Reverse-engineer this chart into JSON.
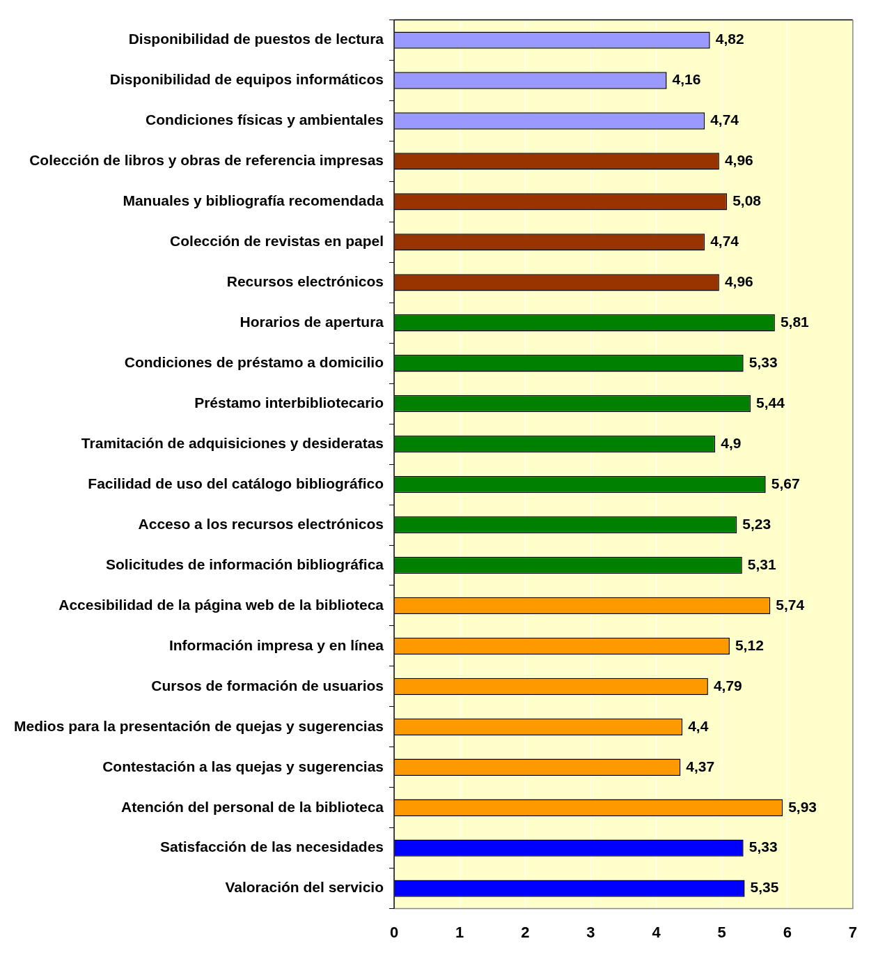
{
  "chart_data": {
    "type": "bar",
    "orientation": "horizontal",
    "categories": [
      "Disponibilidad de puestos de lectura",
      "Disponibilidad de equipos informáticos",
      "Condiciones físicas y ambientales",
      "Colección de libros y obras de referencia impresas",
      "Manuales y bibliografía recomendada",
      "Colección de revistas en papel",
      "Recursos electrónicos",
      "Horarios de apertura",
      "Condiciones de préstamo a domicilio",
      "Préstamo interbibliotecario",
      "Tramitación de adquisiciones y desideratas",
      "Facilidad de uso del catálogo bibliográfico",
      "Acceso a los recursos electrónicos",
      "Solicitudes de información bibliográfica",
      "Accesibilidad de la página web de la biblioteca",
      "Información impresa y en línea",
      "Cursos de formación de usuarios",
      "Medios para la presentación de quejas y sugerencias",
      "Contestación a las quejas y sugerencias",
      "Atención del personal de la biblioteca",
      "Satisfacción de las necesidades",
      "Valoración del servicio"
    ],
    "values": [
      4.82,
      4.16,
      4.74,
      4.96,
      5.08,
      4.74,
      4.96,
      5.81,
      5.33,
      5.44,
      4.9,
      5.67,
      5.23,
      5.31,
      5.74,
      5.12,
      4.79,
      4.4,
      4.37,
      5.93,
      5.33,
      5.35
    ],
    "value_labels": [
      "4,82",
      "4,16",
      "4,74",
      "4,96",
      "5,08",
      "4,74",
      "4,96",
      "5,81",
      "5,33",
      "5,44",
      "4,9",
      "5,67",
      "5,23",
      "5,31",
      "5,74",
      "5,12",
      "4,79",
      "4,4",
      "4,37",
      "5,93",
      "5,33",
      "5,35"
    ],
    "colors": [
      "#9999ff",
      "#9999ff",
      "#9999ff",
      "#993300",
      "#993300",
      "#993300",
      "#993300",
      "#008000",
      "#008000",
      "#008000",
      "#008000",
      "#008000",
      "#008000",
      "#008000",
      "#ff9900",
      "#ff9900",
      "#ff9900",
      "#ff9900",
      "#ff9900",
      "#ff9900",
      "#0000ff",
      "#0000ff"
    ],
    "xlim": [
      0,
      7
    ],
    "xticks": [
      0,
      1,
      2,
      3,
      4,
      5,
      6,
      7
    ],
    "grid": "x",
    "legend": false
  }
}
